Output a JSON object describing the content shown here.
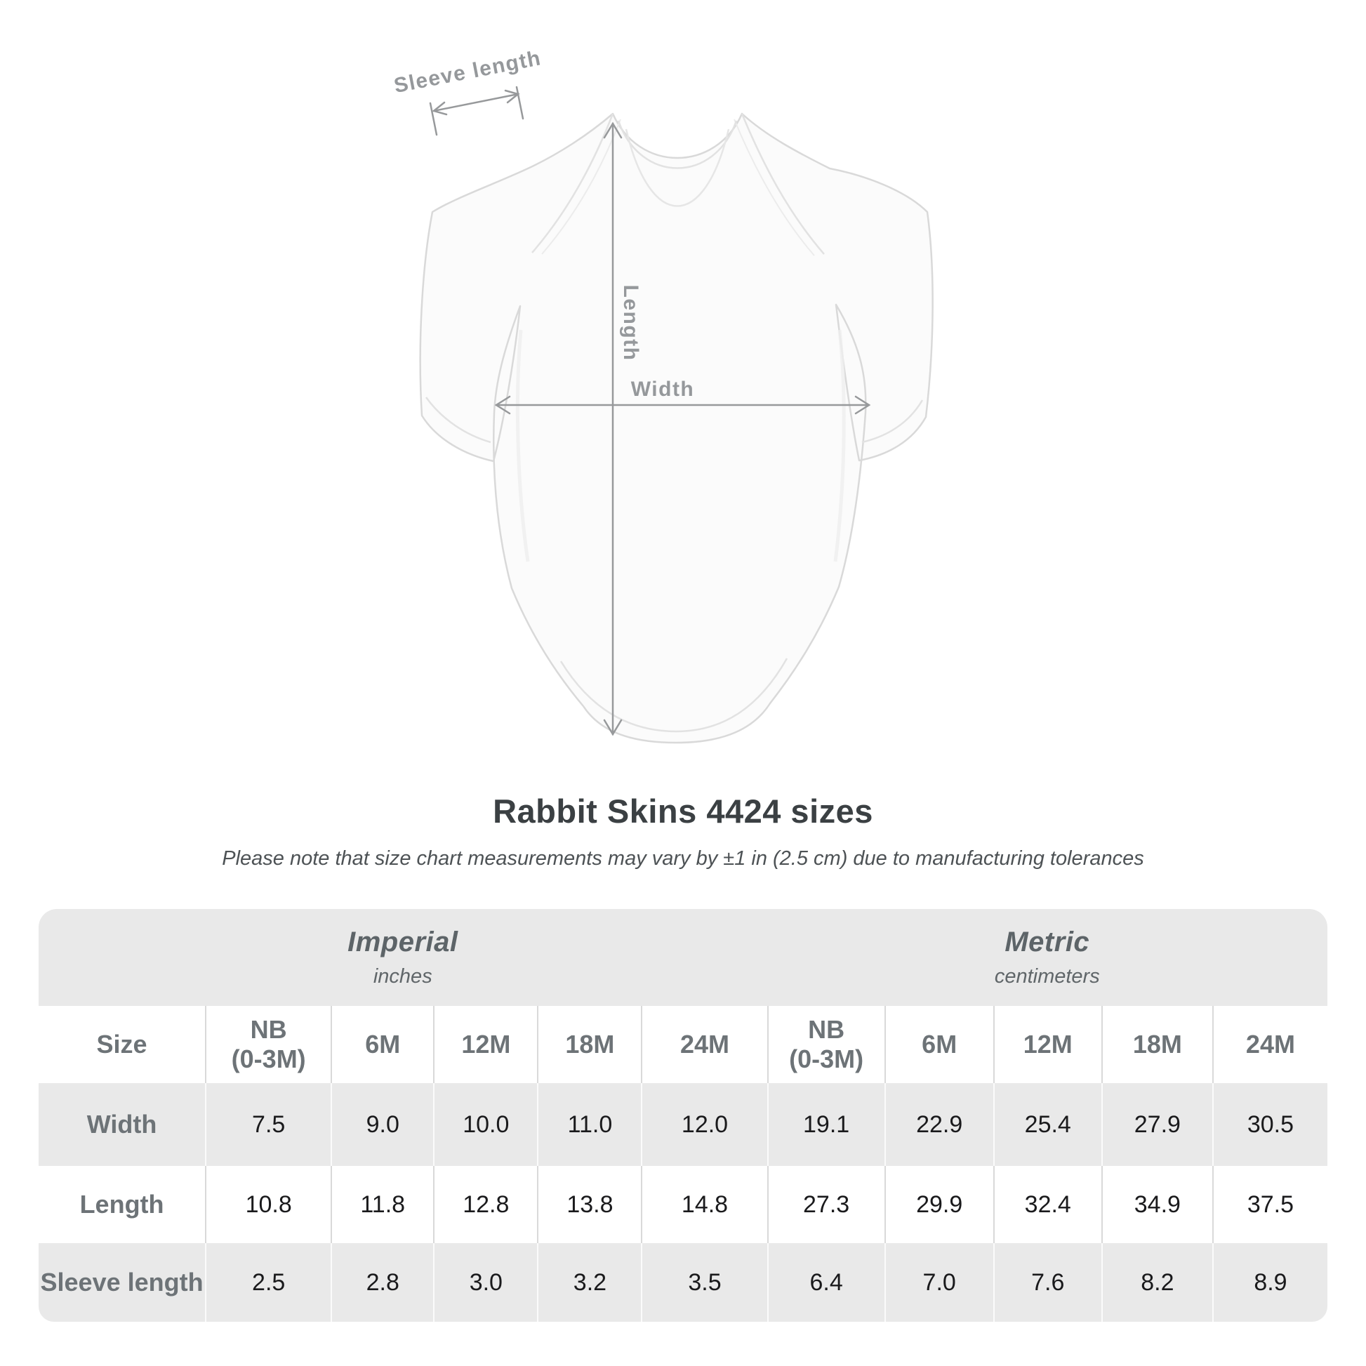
{
  "header": {
    "title": "Rabbit Skins 4424 sizes",
    "note": "Please note that size chart measurements may vary by ±1 in (2.5 cm) due to manufacturing tolerances"
  },
  "diagram": {
    "labels": {
      "sleeve_length": "Sleeve length",
      "length": "Length",
      "width": "Width"
    },
    "colors": {
      "annotation_line": "#97999b",
      "annotation_text": "#95989b",
      "garment_fill": "#fbfbfb",
      "garment_stroke": "#d9d9d9"
    }
  },
  "chart_data": {
    "type": "table",
    "title": "Rabbit Skins 4424 sizes",
    "unit_sections": [
      {
        "label": "Imperial",
        "sublabel": "inches"
      },
      {
        "label": "Metric",
        "sublabel": "centimeters"
      }
    ],
    "size_header": "Size",
    "size_labels": [
      "NB\n(0-3M)",
      "6M",
      "12M",
      "18M",
      "24M"
    ],
    "rows": [
      {
        "label": "Width",
        "imperial": [
          "7.5",
          "9.0",
          "10.0",
          "11.0",
          "12.0"
        ],
        "metric": [
          "19.1",
          "22.9",
          "25.4",
          "27.9",
          "30.5"
        ]
      },
      {
        "label": "Length",
        "imperial": [
          "10.8",
          "11.8",
          "12.8",
          "13.8",
          "14.8"
        ],
        "metric": [
          "27.3",
          "29.9",
          "32.4",
          "34.9",
          "37.5"
        ]
      },
      {
        "label": "Sleeve length",
        "imperial": [
          "2.5",
          "2.8",
          "3.0",
          "3.2",
          "3.5"
        ],
        "metric": [
          "6.4",
          "7.0",
          "7.6",
          "8.2",
          "8.9"
        ]
      }
    ]
  }
}
